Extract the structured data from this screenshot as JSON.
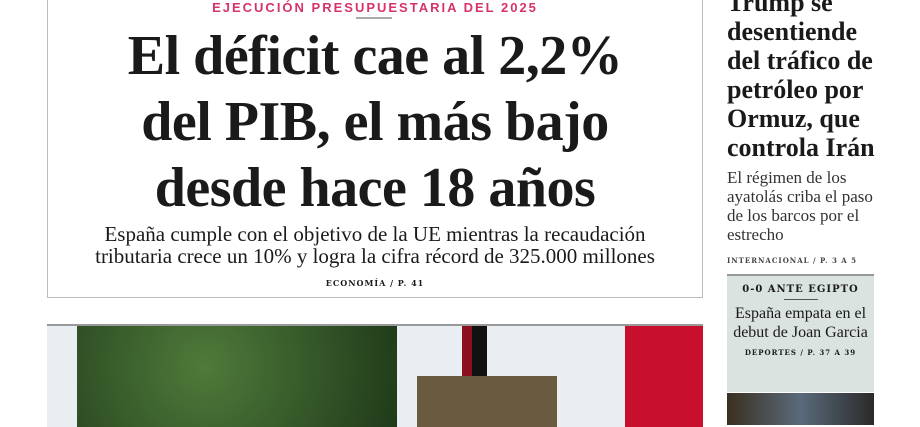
{
  "main_story": {
    "kicker": "EJECUCIÓN PRESUPUESTARIA DEL 2025",
    "headline_lines": [
      "El déficit cae al 2,2%",
      "del PIB, el más bajo",
      "desde hace 18 años"
    ],
    "subhead_lines": [
      "España cumple con el objetivo de la UE mientras la recaudación",
      "tributaria crece un 10% y logra la cifra récord de 325.000 millones"
    ],
    "section": "ECONOMÍA / P. 41",
    "kicker_color": "#d6336c"
  },
  "side_story": {
    "headline": "Trump se desentiende del tráfico de petróleo por Ormuz, que controla Irán",
    "subhead": "El régimen de los ayatolás criba el paso de los barcos por el estrecho",
    "section": "INTERNACIONAL / P. 3 A 5"
  },
  "sports_box": {
    "kicker": "0-0 ANTE EGIPTO",
    "headline": "España empata en el debut de Joan Garcia",
    "section": "DEPORTES / P. 37 A 39",
    "background": "#dbe3e1"
  }
}
